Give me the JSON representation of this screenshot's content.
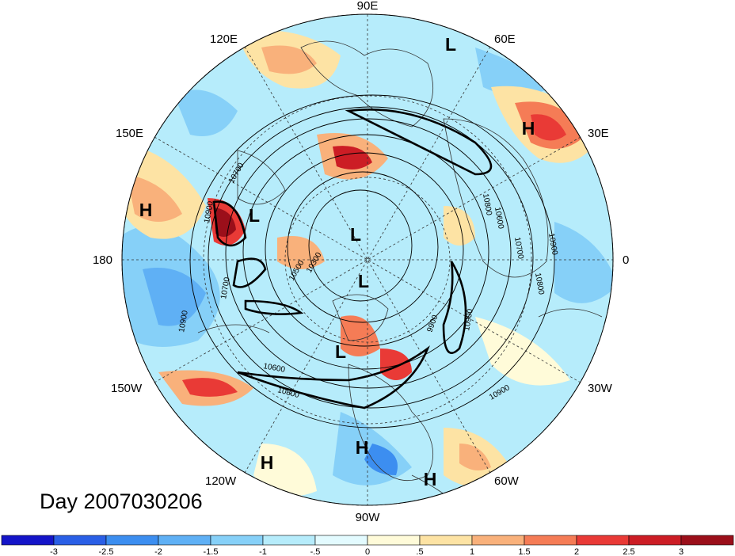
{
  "day_label": "Day 2007030206",
  "longitude_labels": {
    "top": "90E",
    "bottom": "90W",
    "left": "180",
    "right": "0",
    "ne": "60E",
    "ene": "30E",
    "nw": "120E",
    "wnw": "150E",
    "se": "60W",
    "ese": "30W",
    "sw": "120W",
    "wsw": "150W"
  },
  "pressure_centers": [
    {
      "id": "h-east",
      "label": "H"
    },
    {
      "id": "h-west",
      "label": "H"
    },
    {
      "id": "h-sw",
      "label": "H"
    },
    {
      "id": "h-south",
      "label": "H"
    },
    {
      "id": "h-se",
      "label": "H"
    },
    {
      "id": "l-ne",
      "label": "L"
    },
    {
      "id": "l-nw",
      "label": "L"
    },
    {
      "id": "l-center-upper",
      "label": "L"
    },
    {
      "id": "l-center",
      "label": "L"
    },
    {
      "id": "l-south",
      "label": "L"
    }
  ],
  "contour_labels": [
    "10900",
    "10700",
    "10600",
    "10700",
    "10900",
    "10800",
    "10900",
    "10600",
    "10800",
    "9900",
    "10900",
    "10900",
    "10700",
    "10800",
    "10500",
    "10300"
  ],
  "colorbar": {
    "ticks": [
      "-3",
      "-2.5",
      "-2",
      "-1.5",
      "-1",
      "-.5",
      "0",
      ".5",
      "1",
      "1.5",
      "2",
      "2.5",
      "3"
    ],
    "colors": [
      "#1414c8",
      "#2a5fe6",
      "#3c8ef0",
      "#5fb0f5",
      "#86d0f8",
      "#b6ecfb",
      "#e3fbff",
      "#fffbd9",
      "#fde3a4",
      "#f9b17b",
      "#f57c56",
      "#e93a36",
      "#cc1d25",
      "#9b0f1a"
    ]
  },
  "accent_colors": {
    "land": "#333333",
    "grid": "#333333"
  }
}
